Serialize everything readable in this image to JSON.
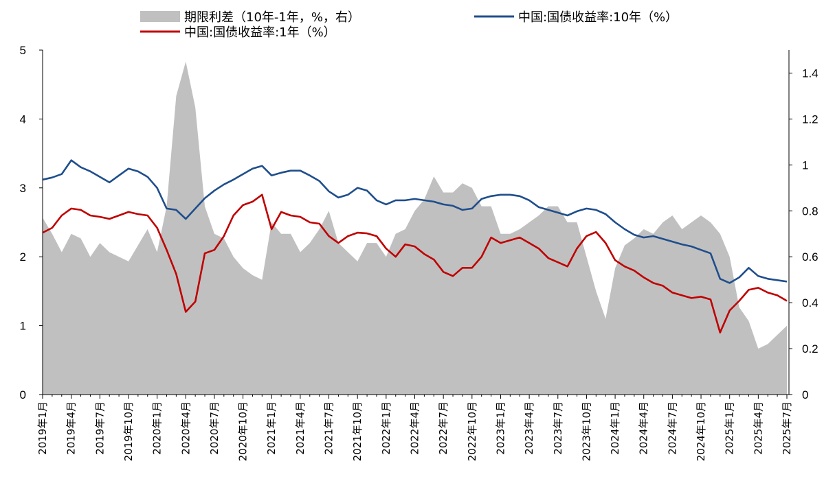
{
  "chart_data": {
    "type": "line",
    "x": [
      "2019-01",
      "2019-02",
      "2019-03",
      "2019-04",
      "2019-05",
      "2019-06",
      "2019-07",
      "2019-08",
      "2019-09",
      "2019-10",
      "2019-11",
      "2019-12",
      "2020-01",
      "2020-02",
      "2020-03",
      "2020-04",
      "2020-05",
      "2020-06",
      "2020-07",
      "2020-08",
      "2020-09",
      "2020-10",
      "2020-11",
      "2020-12",
      "2021-01",
      "2021-02",
      "2021-03",
      "2021-04",
      "2021-05",
      "2021-06",
      "2021-07",
      "2021-08",
      "2021-09",
      "2021-10",
      "2021-11",
      "2021-12",
      "2022-01",
      "2022-02",
      "2022-03",
      "2022-04",
      "2022-05",
      "2022-06",
      "2022-07",
      "2022-08",
      "2022-09",
      "2022-10",
      "2022-11",
      "2022-12",
      "2023-01",
      "2023-02",
      "2023-03",
      "2023-04",
      "2023-05",
      "2023-06",
      "2023-07",
      "2023-08",
      "2023-09",
      "2023-10",
      "2023-11",
      "2023-12",
      "2024-01",
      "2024-02",
      "2024-03",
      "2024-04",
      "2024-05",
      "2024-06",
      "2024-07",
      "2024-08",
      "2024-09",
      "2024-10",
      "2024-11",
      "2024-12",
      "2025-01",
      "2025-02",
      "2025-03",
      "2025-04",
      "2025-05",
      "2025-06",
      "2025-07"
    ],
    "x_tick_labels": [
      "2019年1月",
      "2019年4月",
      "2019年7月",
      "2019年10月",
      "2020年1月",
      "2020年4月",
      "2020年7月",
      "2020年10月",
      "2021年1月",
      "2021年4月",
      "2021年7月",
      "2021年10月",
      "2022年1月",
      "2022年4月",
      "2022年7月",
      "2022年10月",
      "2023年1月",
      "2023年4月",
      "2023年7月",
      "2023年10月",
      "2024年1月",
      "2024年4月",
      "2024年7月",
      "2024年10月",
      "2025年1月",
      "2025年4月",
      "2025年7月"
    ],
    "series": [
      {
        "name": "期限利差（10年-1年，%，右）",
        "kind": "area",
        "axis": "right",
        "color": "#c0c0c0",
        "values": [
          0.77,
          0.7,
          0.62,
          0.7,
          0.68,
          0.6,
          0.66,
          0.62,
          0.6,
          0.58,
          0.65,
          0.72,
          0.62,
          0.82,
          1.3,
          1.45,
          1.25,
          0.82,
          0.7,
          0.68,
          0.6,
          0.55,
          0.52,
          0.5,
          0.75,
          0.7,
          0.7,
          0.62,
          0.66,
          0.72,
          0.8,
          0.66,
          0.62,
          0.58,
          0.66,
          0.66,
          0.6,
          0.7,
          0.72,
          0.8,
          0.85,
          0.95,
          0.88,
          0.88,
          0.92,
          0.9,
          0.82,
          0.82,
          0.7,
          0.7,
          0.72,
          0.75,
          0.78,
          0.82,
          0.82,
          0.75,
          0.75,
          0.6,
          0.45,
          0.33,
          0.55,
          0.65,
          0.68,
          0.72,
          0.7,
          0.75,
          0.78,
          0.72,
          0.75,
          0.78,
          0.75,
          0.7,
          0.6,
          0.38,
          0.32,
          0.2,
          0.22,
          0.26,
          0.3
        ]
      },
      {
        "name": "中国:国债收益率:10年（%）",
        "kind": "line",
        "axis": "left",
        "color": "#1f4e8c",
        "values": [
          3.12,
          3.15,
          3.2,
          3.4,
          3.3,
          3.24,
          3.16,
          3.08,
          3.18,
          3.28,
          3.24,
          3.16,
          3.0,
          2.7,
          2.68,
          2.55,
          2.7,
          2.85,
          2.96,
          3.05,
          3.12,
          3.2,
          3.28,
          3.32,
          3.18,
          3.22,
          3.25,
          3.25,
          3.18,
          3.1,
          2.95,
          2.86,
          2.9,
          3.0,
          2.96,
          2.82,
          2.76,
          2.82,
          2.82,
          2.84,
          2.82,
          2.8,
          2.76,
          2.74,
          2.68,
          2.7,
          2.84,
          2.88,
          2.9,
          2.9,
          2.88,
          2.82,
          2.72,
          2.68,
          2.64,
          2.6,
          2.66,
          2.7,
          2.68,
          2.62,
          2.5,
          2.4,
          2.32,
          2.28,
          2.3,
          2.26,
          2.22,
          2.18,
          2.15,
          2.1,
          2.05,
          1.68,
          1.62,
          1.7,
          1.84,
          1.72,
          1.68,
          1.66,
          1.64
        ]
      },
      {
        "name": "中国:国债收益率:1年（%）",
        "kind": "line",
        "axis": "left",
        "color": "#c00000",
        "values": [
          2.35,
          2.42,
          2.6,
          2.7,
          2.68,
          2.6,
          2.58,
          2.55,
          2.6,
          2.65,
          2.62,
          2.6,
          2.42,
          2.1,
          1.75,
          1.2,
          1.35,
          2.05,
          2.1,
          2.3,
          2.6,
          2.75,
          2.8,
          2.9,
          2.4,
          2.65,
          2.6,
          2.58,
          2.5,
          2.48,
          2.3,
          2.2,
          2.3,
          2.35,
          2.34,
          2.3,
          2.12,
          2.0,
          2.18,
          2.15,
          2.04,
          1.96,
          1.78,
          1.72,
          1.84,
          1.84,
          2.0,
          2.28,
          2.2,
          2.24,
          2.28,
          2.2,
          2.12,
          1.98,
          1.92,
          1.86,
          2.12,
          2.3,
          2.36,
          2.2,
          1.95,
          1.86,
          1.8,
          1.7,
          1.62,
          1.58,
          1.48,
          1.44,
          1.4,
          1.42,
          1.38,
          0.9,
          1.22,
          1.36,
          1.52,
          1.55,
          1.48,
          1.44,
          1.36
        ]
      }
    ],
    "y_left": {
      "min": 0,
      "max": 5,
      "ticks": [
        0,
        1,
        2,
        3,
        4,
        5
      ]
    },
    "y_right": {
      "min": 0,
      "max": 1.5,
      "ticks": [
        "0",
        "0.2",
        "0.4",
        "0.6",
        "0.8",
        "1",
        "1.2",
        "1.4"
      ]
    },
    "legend_position": "top",
    "grid": false
  }
}
